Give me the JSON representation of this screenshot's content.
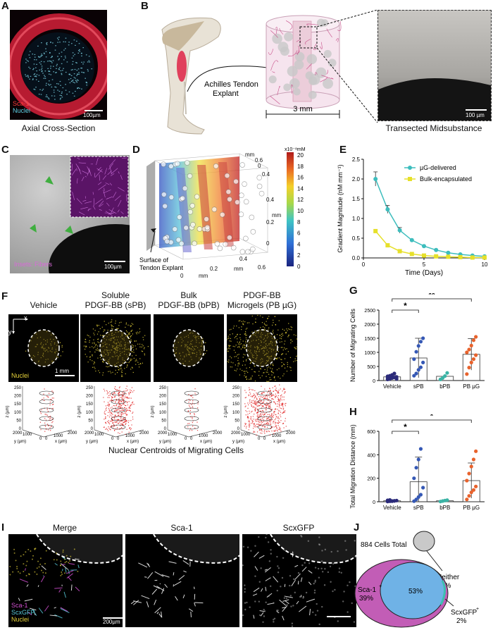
{
  "panels": {
    "A": {
      "letter": "A",
      "caption": "Axial Cross-Section",
      "legend": [
        "Sca-1",
        "Nuclei"
      ],
      "scalebar": "100µm",
      "legend_colors": [
        "#ff3b3b",
        "#5fd3e6"
      ]
    },
    "B": {
      "letter": "B",
      "explant_label": [
        "Achilles Tendon",
        "Explant"
      ],
      "dimension": "3 mm",
      "caption": "Transected Midsubstance",
      "scalebar": "100 µm"
    },
    "C": {
      "letter": "C",
      "inset_label": "Insets: Fibers",
      "scalebar": "100µm"
    },
    "D": {
      "letter": "D",
      "surface_label": [
        "Surface of",
        "Tendon Explant"
      ],
      "colorbar_unit": "x10⁻⁸mM",
      "colorbar_ticks": [
        "20",
        "18",
        "16",
        "14",
        "12",
        "10",
        "8",
        "6",
        "4",
        "2",
        "0"
      ],
      "axis_unit": "mm",
      "axis_ticks": [
        "0.6",
        "0.4",
        "0.2",
        "0"
      ]
    },
    "E": {
      "letter": "E"
    },
    "F": {
      "letter": "F",
      "columns": [
        {
          "title1": "",
          "title2": "Vehicle"
        },
        {
          "title1": "Soluble",
          "title2": "PDGF-BB (sPB)"
        },
        {
          "title1": "Bulk",
          "title2": "PDGF-BB (bPB)"
        },
        {
          "title1": "PDGF-BB",
          "title2": "Microgels (PB µG)"
        }
      ],
      "axis_x": "x",
      "axis_y": "y",
      "nuclei_label": "Nuclei",
      "scalebar": "1 mm",
      "plot3d": {
        "z_label": "z (µm)",
        "y_label": "y (µm)",
        "x_label": "x (µm)",
        "z_ticks": [
          "250",
          "200",
          "150",
          "100",
          "50",
          "0"
        ],
        "y_ticks": [
          "2000",
          "1000",
          "0"
        ],
        "x_ticks": [
          "0",
          "1000",
          "2000"
        ]
      },
      "caption": "Nuclear Centroids of Migrating Cells"
    },
    "G": {
      "letter": "G"
    },
    "H": {
      "letter": "H"
    },
    "I": {
      "letter": "I",
      "titles": [
        "Merge",
        "Sca-1",
        "ScxGFP"
      ],
      "legend": [
        "Sca-1",
        "ScxGFP",
        "Nuclei"
      ],
      "legend_colors": [
        "#d04fd0",
        "#58c8d8",
        "#e6d23a"
      ],
      "scalebar": "200µm"
    },
    "J": {
      "letter": "J",
      "total": "884 Cells Total",
      "sca1": "Sca-1",
      "sca1_pct": "39%",
      "both_pct": "53%",
      "scx": "ScxGFP",
      "scx_pct": "2%",
      "neither": "Neither",
      "neither_pct": "6%"
    }
  },
  "chart_data": [
    {
      "type": "line",
      "panel": "E",
      "xlabel": "Time (Days)",
      "ylabel": "Gradient Magnitude (nM mm⁻¹)",
      "xlim": [
        0,
        10
      ],
      "ylim": [
        0,
        2.5
      ],
      "xticks": [
        0,
        5,
        10
      ],
      "yticks": [
        0,
        0.5,
        1.0,
        1.5,
        2.0,
        2.5
      ],
      "x": [
        1,
        2,
        3,
        4,
        5,
        6,
        7,
        8,
        9,
        10
      ],
      "series": [
        {
          "name": "µG-delivered",
          "color": "#3dbdbd",
          "values": [
            2.0,
            1.23,
            0.7,
            0.45,
            0.3,
            0.2,
            0.13,
            0.09,
            0.06,
            0.04
          ],
          "err": [
            0.18,
            0.1,
            0.07,
            0,
            0,
            0,
            0,
            0,
            0,
            0
          ]
        },
        {
          "name": "Bulk-encapsulated",
          "color": "#e6e02a",
          "values": [
            0.68,
            0.32,
            0.17,
            0.1,
            0.06,
            0.04,
            0.03,
            0.02,
            0.01,
            0.01
          ],
          "err": [
            0,
            0,
            0,
            0,
            0,
            0,
            0,
            0,
            0,
            0
          ]
        }
      ]
    },
    {
      "type": "bar",
      "panel": "G",
      "ylabel": "Number of Migrating Cells",
      "categories": [
        "Vehicle",
        "sPB",
        "bPB",
        "PB µG"
      ],
      "ylim": [
        0,
        2500
      ],
      "yticks": [
        0,
        500,
        1000,
        1500,
        2000,
        2500
      ],
      "means": [
        130,
        800,
        150,
        930
      ],
      "err": [
        60,
        700,
        0,
        560
      ],
      "colors": [
        "#2b2a7a",
        "#3558b5",
        "#3bb3a5",
        "#e8622c"
      ],
      "points": [
        [
          40,
          60,
          90,
          110,
          130,
          150,
          170,
          200,
          250,
          60,
          100
        ],
        [
          170,
          250,
          380,
          470,
          640,
          760,
          1020,
          1230,
          1380,
          1500
        ],
        [
          40,
          90,
          160,
          270
        ],
        [
          230,
          460,
          640,
          760,
          900,
          1000,
          1100,
          1240,
          1430,
          1550
        ]
      ],
      "significance": [
        {
          "from": 0,
          "to": 1,
          "label": "*"
        },
        {
          "from": 0,
          "to": 3,
          "label": "**"
        }
      ]
    },
    {
      "type": "bar",
      "panel": "H",
      "ylabel": "Total Migration Distance (mm)",
      "categories": [
        "Vehicle",
        "sPB",
        "bPB",
        "PB µG"
      ],
      "ylim": [
        0,
        600
      ],
      "yticks": [
        0,
        200,
        400,
        600
      ],
      "means": [
        8,
        170,
        8,
        180
      ],
      "err": [
        6,
        210,
        0,
        150
      ],
      "colors": [
        "#2b2a7a",
        "#3558b5",
        "#3bb3a5",
        "#e8622c"
      ],
      "points": [
        [
          2,
          4,
          6,
          8,
          10,
          12,
          15,
          5,
          7
        ],
        [
          5,
          20,
          40,
          60,
          120,
          200,
          290,
          360,
          450
        ],
        [
          2,
          6,
          10,
          14
        ],
        [
          20,
          50,
          80,
          100,
          130,
          180,
          240,
          300,
          360,
          430
        ]
      ],
      "significance": [
        {
          "from": 0,
          "to": 1,
          "label": "*"
        },
        {
          "from": 0,
          "to": 3,
          "label": "*"
        }
      ]
    }
  ]
}
